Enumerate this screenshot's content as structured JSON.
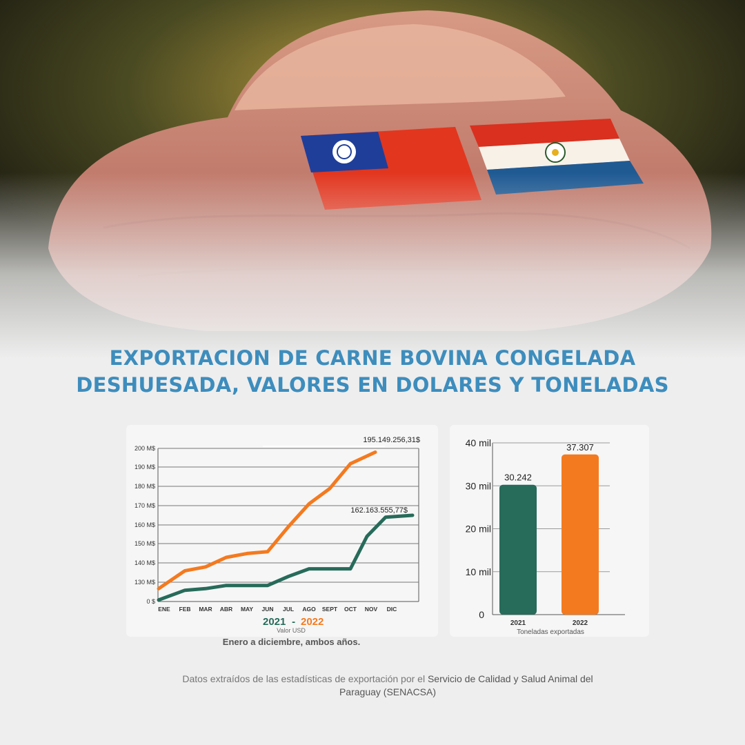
{
  "headline": {
    "line1": "EXPORTACION DE CARNE BOVINA CONGELADA",
    "line2": "DESHUESADA, VALORES EN DOLARES Y TONELADAS"
  },
  "photo": {
    "flags": [
      "taiwan-flag",
      "paraguay-flag"
    ],
    "colors": {
      "taiwan_red": "#e2361f",
      "taiwan_blue": "#1f3e9a",
      "paraguay_red": "#d9301f",
      "paraguay_blue": "#1f5a93"
    }
  },
  "chart_data": [
    {
      "type": "line",
      "x_categories": [
        "ENE",
        "FEB",
        "MAR",
        "ABR",
        "MAY",
        "JUN",
        "JUL",
        "AGO",
        "SEPT",
        "OCT",
        "NOV",
        "DIC"
      ],
      "y_tick_labels": [
        "0 $",
        "130 M$",
        "140 M$",
        "150 M$",
        "160 M$",
        "170 M$",
        "180 M$",
        "190 M$",
        "200 M$"
      ],
      "series": [
        {
          "year": "2021",
          "color": "#276b5a",
          "points": [
            [
              0.5,
              119
            ],
            [
              1,
              125
            ],
            [
              2,
              126
            ],
            [
              3,
              128
            ],
            [
              4,
              128
            ],
            [
              5,
              128
            ],
            [
              6,
              133
            ],
            [
              7,
              137
            ],
            [
              8,
              137
            ],
            [
              9,
              137
            ],
            [
              9.8,
              154
            ],
            [
              10.7,
              164
            ],
            [
              12,
              165
            ]
          ],
          "end_label": "162.163.555,77$"
        },
        {
          "year": "2022",
          "color": "#f47a1f",
          "points": [
            [
              0.5,
              126
            ],
            [
              1,
              136
            ],
            [
              2,
              138
            ],
            [
              3,
              143
            ],
            [
              4,
              145
            ],
            [
              5,
              146
            ],
            [
              6,
              159
            ],
            [
              7,
              171
            ],
            [
              8,
              179
            ],
            [
              9,
              192
            ],
            [
              10.2,
              198
            ]
          ],
          "end_label": "195.149.256,31$"
        }
      ],
      "legend": {
        "year1": "2021",
        "sep": " - ",
        "year2": "2022"
      },
      "xlabel": "Valor USD",
      "colors": {
        "year1": "#276b5a",
        "year2": "#f47a1f"
      }
    },
    {
      "type": "bar",
      "categories": [
        "2021",
        "2022"
      ],
      "values": [
        30242,
        37307
      ],
      "value_labels": [
        "30.242",
        "37.307"
      ],
      "colors": [
        "#276b5a",
        "#f47a1f"
      ],
      "y_tick_labels": [
        "0",
        "10 mil",
        "20 mil",
        "30 mil",
        "40 mil"
      ],
      "ylim": [
        0,
        40000
      ],
      "xlabel": "Toneladas exportadas"
    }
  ],
  "footnote": "Enero a diciembre, ambos años.",
  "source": {
    "prefix": "Datos extraídos de las estadísticas de exportación por el ",
    "org": "Servicio de Calidad y Salud Animal del Paraguay (SENACSA)"
  }
}
